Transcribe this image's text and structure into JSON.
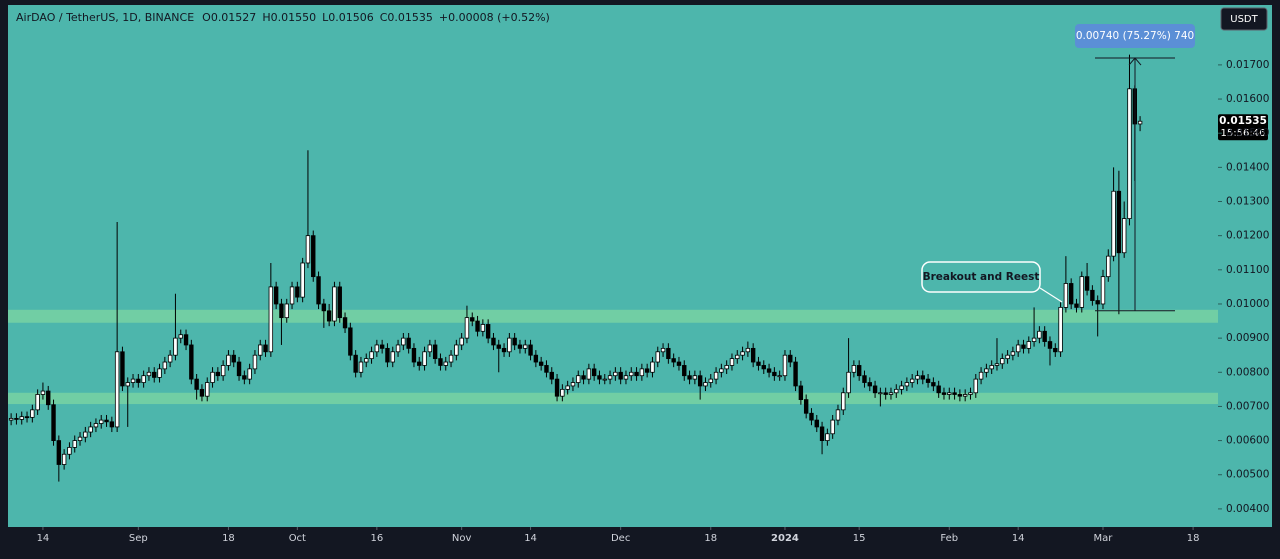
{
  "chart_data": {
    "type": "candlestick",
    "title": "AirDAO / TetherUS, 1D, BINANCE",
    "legend_values": [
      "O0.01527",
      "H0.01550",
      "L0.01506",
      "C0.01535",
      "+0.00008 (+0.52%)"
    ],
    "currency": "USDT",
    "last_price": 0.01535,
    "countdown": "15:56:46",
    "annotation": "Breakout and Reest",
    "measure": {
      "from": 0.0098,
      "to": 0.0172,
      "label": "0.00740 (75.27%) 740"
    },
    "zones": [
      {
        "low": 0.00945,
        "high": 0.00983
      },
      {
        "low": 0.00707,
        "high": 0.0074
      }
    ],
    "up_color": "#ffffff",
    "down_color": "#000000",
    "wick_color": "#000000",
    "background": "#4db6ac",
    "zone_color": "#7dd6a2",
    "grid": false,
    "xlim": [
      -2.1,
      227.7
    ],
    "xticks": [
      {
        "value": 6,
        "label": "14"
      },
      {
        "value": 24,
        "label": "Sep"
      },
      {
        "value": 41,
        "label": "18"
      },
      {
        "value": 54,
        "label": "Oct"
      },
      {
        "value": 69,
        "label": "16"
      },
      {
        "value": 85,
        "label": "Nov"
      },
      {
        "value": 98,
        "label": "14"
      },
      {
        "value": 115,
        "label": "Dec"
      },
      {
        "value": 132,
        "label": "18"
      },
      {
        "value": 146,
        "label": "2024"
      },
      {
        "value": 160,
        "label": "15"
      },
      {
        "value": 177,
        "label": "Feb"
      },
      {
        "value": 190,
        "label": "14"
      },
      {
        "value": 206,
        "label": "Mar"
      },
      {
        "value": 223,
        "label": "18"
      }
    ],
    "ylim": [
      0.00347,
      0.0189
    ],
    "yticks": [
      {
        "value": 0.004,
        "label": "0.00400"
      },
      {
        "value": 0.005,
        "label": "0.00500"
      },
      {
        "value": 0.006,
        "label": "0.00600"
      },
      {
        "value": 0.007,
        "label": "0.00700"
      },
      {
        "value": 0.008,
        "label": "0.00800"
      },
      {
        "value": 0.009,
        "label": "0.00900"
      },
      {
        "value": 0.01,
        "label": "0.01000"
      },
      {
        "value": 0.011,
        "label": "0.01100"
      },
      {
        "value": 0.012,
        "label": "0.01200"
      },
      {
        "value": 0.013,
        "label": "0.01300"
      },
      {
        "value": 0.014,
        "label": "0.01400"
      },
      {
        "value": 0.015,
        "label": "0.01500"
      },
      {
        "value": 0.016,
        "label": "0.01600"
      },
      {
        "value": 0.017,
        "label": "0.01700"
      }
    ],
    "open": [
      0.0066,
      0.00665,
      0.00662,
      0.0067,
      0.00668,
      0.0069,
      0.00735,
      0.00745,
      0.00705,
      0.006,
      0.0053,
      0.0056,
      0.0058,
      0.006,
      0.0061,
      0.00625,
      0.0064,
      0.0065,
      0.0066,
      0.00655,
      0.0064,
      0.0086,
      0.0076,
      0.0077,
      0.0078,
      0.0077,
      0.0079,
      0.008,
      0.00785,
      0.0081,
      0.0083,
      0.0085,
      0.009,
      0.0091,
      0.0088,
      0.0078,
      0.0075,
      0.0073,
      0.0077,
      0.008,
      0.0079,
      0.0082,
      0.0085,
      0.0083,
      0.0079,
      0.0078,
      0.0081,
      0.0085,
      0.0088,
      0.0086,
      0.0105,
      0.01,
      0.0096,
      0.01,
      0.0105,
      0.0102,
      0.0112,
      0.012,
      0.0108,
      0.01,
      0.0098,
      0.0095,
      0.0105,
      0.0096,
      0.0093,
      0.0085,
      0.008,
      0.0083,
      0.0084,
      0.0086,
      0.0088,
      0.0087,
      0.0083,
      0.0086,
      0.0088,
      0.009,
      0.0087,
      0.0083,
      0.0082,
      0.0086,
      0.0088,
      0.0084,
      0.0082,
      0.0083,
      0.0085,
      0.0088,
      0.009,
      0.0096,
      0.0095,
      0.0092,
      0.0094,
      0.009,
      0.0088,
      0.0087,
      0.0086,
      0.009,
      0.0088,
      0.0087,
      0.0088,
      0.0085,
      0.0083,
      0.0082,
      0.008,
      0.0078,
      0.0073,
      0.0075,
      0.0076,
      0.0077,
      0.0079,
      0.0078,
      0.0081,
      0.0079,
      0.0078,
      0.0078,
      0.0079,
      0.008,
      0.0078,
      0.0079,
      0.008,
      0.0079,
      0.0081,
      0.008,
      0.0083,
      0.0086,
      0.0087,
      0.0084,
      0.0083,
      0.0082,
      0.0079,
      0.0078,
      0.0079,
      0.0076,
      0.0077,
      0.0078,
      0.008,
      0.0081,
      0.0082,
      0.0084,
      0.0085,
      0.0086,
      0.0087,
      0.0083,
      0.0082,
      0.0081,
      0.008,
      0.0079,
      0.0079,
      0.0085,
      0.0083,
      0.0076,
      0.0072,
      0.0068,
      0.0066,
      0.0064,
      0.006,
      0.0062,
      0.0066,
      0.0069,
      0.0074,
      0.008,
      0.0082,
      0.0079,
      0.0077,
      0.0076,
      0.0074,
      0.0074,
      0.00735,
      0.0074,
      0.0075,
      0.0076,
      0.0077,
      0.0078,
      0.0079,
      0.0078,
      0.0077,
      0.0076,
      0.0074,
      0.00735,
      0.0074,
      0.00735,
      0.0073,
      0.00735,
      0.0074,
      0.0078,
      0.008,
      0.0081,
      0.0082,
      0.00825,
      0.0084,
      0.0085,
      0.0086,
      0.0088,
      0.0087,
      0.0089,
      0.009,
      0.0092,
      0.0089,
      0.0087,
      0.0086,
      0.0099,
      0.0106,
      0.01,
      0.0099,
      0.0108,
      0.0104,
      0.0101,
      0.01,
      0.0108,
      0.0114,
      0.0133,
      0.0115,
      0.0125,
      0.0163,
      0.01527
    ],
    "high": [
      0.0068,
      0.0068,
      0.00685,
      0.00685,
      0.00705,
      0.0075,
      0.0077,
      0.0076,
      0.0072,
      0.00615,
      0.00575,
      0.00595,
      0.00615,
      0.00625,
      0.0064,
      0.00655,
      0.00665,
      0.00675,
      0.00675,
      0.0067,
      0.0124,
      0.00875,
      0.00785,
      0.00795,
      0.00795,
      0.00805,
      0.00815,
      0.00815,
      0.00825,
      0.00845,
      0.00865,
      0.0103,
      0.00925,
      0.00925,
      0.00895,
      0.00795,
      0.00765,
      0.00785,
      0.00815,
      0.00815,
      0.00835,
      0.00865,
      0.00865,
      0.00845,
      0.00805,
      0.00825,
      0.00865,
      0.00895,
      0.00895,
      0.0112,
      0.01065,
      0.01015,
      0.01015,
      0.01065,
      0.01065,
      0.01135,
      0.0145,
      0.01215,
      0.01095,
      0.01015,
      0.01,
      0.01065,
      0.01065,
      0.00975,
      0.00945,
      0.00865,
      0.00845,
      0.00855,
      0.00875,
      0.00895,
      0.00895,
      0.00885,
      0.00875,
      0.00895,
      0.00915,
      0.00915,
      0.00885,
      0.00845,
      0.00875,
      0.00895,
      0.00895,
      0.00855,
      0.00845,
      0.00865,
      0.00895,
      0.00915,
      0.00995,
      0.00975,
      0.00965,
      0.00955,
      0.00955,
      0.00915,
      0.00895,
      0.00885,
      0.00915,
      0.00915,
      0.00895,
      0.00895,
      0.00895,
      0.00865,
      0.00845,
      0.00835,
      0.00815,
      0.00795,
      0.00765,
      0.00775,
      0.00785,
      0.00805,
      0.00805,
      0.00825,
      0.00825,
      0.00805,
      0.00795,
      0.00805,
      0.00815,
      0.00815,
      0.00805,
      0.00815,
      0.00815,
      0.00825,
      0.00825,
      0.00845,
      0.00875,
      0.00885,
      0.00885,
      0.00855,
      0.00845,
      0.00835,
      0.00805,
      0.00805,
      0.00805,
      0.00785,
      0.00795,
      0.00815,
      0.00825,
      0.00835,
      0.00855,
      0.00865,
      0.00875,
      0.0089,
      0.00885,
      0.00845,
      0.00835,
      0.00825,
      0.00815,
      0.00805,
      0.00865,
      0.00865,
      0.00845,
      0.00775,
      0.00735,
      0.00695,
      0.00675,
      0.00655,
      0.00635,
      0.00675,
      0.00705,
      0.00755,
      0.009,
      0.00835,
      0.00835,
      0.00805,
      0.00785,
      0.00775,
      0.00755,
      0.00755,
      0.00755,
      0.00765,
      0.00775,
      0.00785,
      0.00795,
      0.00805,
      0.00805,
      0.00795,
      0.00785,
      0.00775,
      0.00755,
      0.00755,
      0.00755,
      0.0075,
      0.0075,
      0.00755,
      0.00795,
      0.00815,
      0.00825,
      0.00835,
      0.009,
      0.00855,
      0.00865,
      0.00875,
      0.00895,
      0.00895,
      0.00905,
      0.0099,
      0.00935,
      0.00935,
      0.00905,
      0.00885,
      0.01005,
      0.0114,
      0.01075,
      0.01015,
      0.01095,
      0.0112,
      0.01055,
      0.01025,
      0.011,
      0.0116,
      0.014,
      0.0139,
      0.013,
      0.0173,
      0.0164,
      0.0155
    ],
    "low": [
      0.00645,
      0.00647,
      0.00647,
      0.00653,
      0.00653,
      0.00675,
      0.0072,
      0.0069,
      0.00585,
      0.0048,
      0.00515,
      0.00545,
      0.00565,
      0.00585,
      0.00595,
      0.0061,
      0.00625,
      0.00635,
      0.0064,
      0.00625,
      0.00625,
      0.00745,
      0.0064,
      0.00755,
      0.00755,
      0.00755,
      0.00775,
      0.0077,
      0.0077,
      0.00795,
      0.00815,
      0.00835,
      0.00885,
      0.00865,
      0.00765,
      0.0072,
      0.00715,
      0.00715,
      0.00755,
      0.00775,
      0.00775,
      0.00805,
      0.00815,
      0.00775,
      0.00765,
      0.00765,
      0.00795,
      0.00835,
      0.00845,
      0.00845,
      0.00985,
      0.0088,
      0.00945,
      0.00985,
      0.01005,
      0.01005,
      0.01105,
      0.01065,
      0.00985,
      0.0093,
      0.00935,
      0.00935,
      0.00945,
      0.00915,
      0.00835,
      0.00785,
      0.00785,
      0.00815,
      0.00825,
      0.00845,
      0.00855,
      0.00815,
      0.00815,
      0.00845,
      0.00865,
      0.00855,
      0.00815,
      0.00805,
      0.00805,
      0.00845,
      0.00825,
      0.00805,
      0.00805,
      0.00815,
      0.00835,
      0.00865,
      0.00885,
      0.00935,
      0.00905,
      0.00905,
      0.00885,
      0.00865,
      0.008,
      0.00845,
      0.00845,
      0.00865,
      0.00855,
      0.00855,
      0.00835,
      0.00815,
      0.00805,
      0.00785,
      0.00765,
      0.00715,
      0.00715,
      0.00735,
      0.00745,
      0.00755,
      0.00765,
      0.00765,
      0.00775,
      0.00765,
      0.00765,
      0.00765,
      0.00775,
      0.00765,
      0.00765,
      0.00775,
      0.00775,
      0.00775,
      0.00785,
      0.00785,
      0.00815,
      0.00845,
      0.00825,
      0.00815,
      0.00805,
      0.00775,
      0.00765,
      0.00765,
      0.0072,
      0.00745,
      0.00755,
      0.00765,
      0.00785,
      0.00795,
      0.00805,
      0.00825,
      0.00835,
      0.00845,
      0.00815,
      0.00805,
      0.00795,
      0.00785,
      0.00775,
      0.00775,
      0.00775,
      0.00815,
      0.00745,
      0.00705,
      0.00665,
      0.00645,
      0.00625,
      0.0056,
      0.00585,
      0.00605,
      0.00645,
      0.00675,
      0.00725,
      0.00785,
      0.00775,
      0.00755,
      0.00745,
      0.00725,
      0.007,
      0.0072,
      0.0072,
      0.00725,
      0.00735,
      0.00745,
      0.00755,
      0.00765,
      0.00765,
      0.00755,
      0.00745,
      0.00725,
      0.0072,
      0.0072,
      0.0072,
      0.00715,
      0.00715,
      0.0072,
      0.00725,
      0.00765,
      0.00785,
      0.00795,
      0.00805,
      0.0081,
      0.00825,
      0.00835,
      0.00845,
      0.00855,
      0.00855,
      0.00875,
      0.00885,
      0.00875,
      0.0082,
      0.00845,
      0.00845,
      0.00975,
      0.00985,
      0.00975,
      0.00975,
      0.01025,
      0.00995,
      0.00905,
      0.00985,
      0.01065,
      0.01125,
      0.0097,
      0.01135,
      0.0123,
      0.0136,
      0.01506
    ],
    "close": [
      0.00665,
      0.00662,
      0.0067,
      0.00668,
      0.0069,
      0.00735,
      0.00745,
      0.00705,
      0.006,
      0.0053,
      0.0056,
      0.0058,
      0.006,
      0.0061,
      0.00625,
      0.0064,
      0.0065,
      0.0066,
      0.00655,
      0.0064,
      0.0086,
      0.0076,
      0.0077,
      0.0078,
      0.0077,
      0.0079,
      0.008,
      0.00785,
      0.0081,
      0.0083,
      0.0085,
      0.009,
      0.0091,
      0.0088,
      0.0078,
      0.0075,
      0.0073,
      0.0077,
      0.008,
      0.0079,
      0.0082,
      0.0085,
      0.0083,
      0.0079,
      0.0078,
      0.0081,
      0.0085,
      0.0088,
      0.0086,
      0.0105,
      0.01,
      0.0096,
      0.01,
      0.0105,
      0.0102,
      0.0112,
      0.012,
      0.0108,
      0.01,
      0.0098,
      0.0095,
      0.0105,
      0.0096,
      0.0093,
      0.0085,
      0.008,
      0.0083,
      0.0084,
      0.0086,
      0.0088,
      0.0087,
      0.0083,
      0.0086,
      0.0088,
      0.009,
      0.0087,
      0.0083,
      0.0082,
      0.0086,
      0.0088,
      0.0084,
      0.0082,
      0.0083,
      0.0085,
      0.0088,
      0.009,
      0.0096,
      0.0095,
      0.0092,
      0.0094,
      0.009,
      0.0088,
      0.0087,
      0.0086,
      0.009,
      0.0088,
      0.0087,
      0.0088,
      0.0085,
      0.0083,
      0.0082,
      0.008,
      0.0078,
      0.0073,
      0.0075,
      0.0076,
      0.0077,
      0.0079,
      0.0078,
      0.0081,
      0.0079,
      0.0078,
      0.0078,
      0.0079,
      0.008,
      0.0078,
      0.0079,
      0.008,
      0.0079,
      0.0081,
      0.008,
      0.0083,
      0.0086,
      0.0087,
      0.0084,
      0.0083,
      0.0082,
      0.0079,
      0.0078,
      0.0079,
      0.0076,
      0.0077,
      0.0078,
      0.008,
      0.0081,
      0.0082,
      0.0084,
      0.0085,
      0.0086,
      0.0087,
      0.0083,
      0.0082,
      0.0081,
      0.008,
      0.0079,
      0.0079,
      0.0085,
      0.0083,
      0.0076,
      0.0072,
      0.0068,
      0.0066,
      0.0064,
      0.006,
      0.0062,
      0.0066,
      0.0069,
      0.0074,
      0.008,
      0.0082,
      0.0079,
      0.0077,
      0.0076,
      0.0074,
      0.0074,
      0.00735,
      0.0074,
      0.0075,
      0.0076,
      0.0077,
      0.0078,
      0.0079,
      0.0078,
      0.0077,
      0.0076,
      0.0074,
      0.00735,
      0.0074,
      0.00735,
      0.0073,
      0.00735,
      0.0074,
      0.0078,
      0.008,
      0.0081,
      0.0082,
      0.00825,
      0.0084,
      0.0085,
      0.0086,
      0.0088,
      0.0087,
      0.0089,
      0.009,
      0.0092,
      0.0089,
      0.0087,
      0.0086,
      0.0099,
      0.0106,
      0.01,
      0.0099,
      0.0108,
      0.0104,
      0.0101,
      0.01,
      0.0108,
      0.0114,
      0.0133,
      0.0115,
      0.0125,
      0.0163,
      0.01527,
      0.01535
    ]
  }
}
